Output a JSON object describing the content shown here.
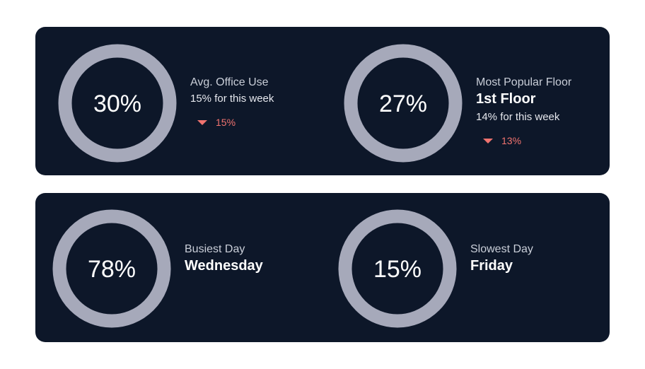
{
  "colors": {
    "panel_bg": "#0d1729",
    "track": "#a6a9ba",
    "accent_red": "#f0736f",
    "accent_teal": "#14c8b4"
  },
  "chart_data": [
    {
      "type": "pie",
      "variant": "donut",
      "value_percent": 30,
      "center_label": "30%",
      "highlight_color": "#f0736f",
      "label": "Avg. Office Use",
      "sub_text": "15% for this week",
      "delta": {
        "direction": "down",
        "text": "15%"
      }
    },
    {
      "type": "pie",
      "variant": "donut",
      "value_percent": 27,
      "center_label": "27%",
      "highlight_color": "#14c8b4",
      "label": "Most Popular Floor",
      "big_text": "1st Floor",
      "sub_text": "14% for this week",
      "delta": {
        "direction": "down",
        "text": "13%"
      }
    },
    {
      "type": "pie",
      "variant": "donut",
      "value_percent": 78,
      "center_label": "78%",
      "highlight_color": "#14c8b4",
      "label": "Busiest Day",
      "big_text": "Wednesday"
    },
    {
      "type": "pie",
      "variant": "donut",
      "value_percent": 15,
      "center_label": "15%",
      "highlight_color": "#f0736f",
      "label": "Slowest Day",
      "big_text": "Friday"
    }
  ]
}
